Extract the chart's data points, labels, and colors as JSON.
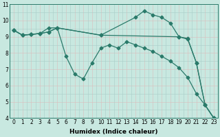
{
  "series": [
    {
      "x": [
        0,
        1,
        2,
        3,
        4,
        5,
        10,
        19,
        20,
        21,
        22,
        23
      ],
      "y": [
        9.4,
        9.1,
        9.15,
        9.2,
        9.3,
        9.55,
        9.1,
        9.0,
        8.9,
        7.4,
        4.8,
        4.0
      ]
    },
    {
      "x": [
        0,
        1,
        2,
        3,
        4,
        5,
        6,
        7,
        8,
        9,
        10,
        11,
        12,
        13,
        14,
        15,
        16,
        17,
        18,
        19,
        20,
        21,
        22,
        23
      ],
      "y": [
        9.4,
        9.1,
        9.15,
        9.2,
        9.55,
        9.55,
        7.8,
        6.7,
        6.4,
        7.4,
        8.3,
        8.5,
        8.3,
        8.7,
        8.5,
        8.3,
        8.1,
        7.8,
        7.5,
        7.1,
        6.5,
        5.5,
        4.8,
        4.0
      ]
    },
    {
      "x": [
        0,
        1,
        2,
        3,
        4,
        5,
        10,
        14,
        15,
        16,
        17,
        18,
        19,
        20,
        21,
        22,
        23
      ],
      "y": [
        9.4,
        9.1,
        9.15,
        9.2,
        9.3,
        9.55,
        9.1,
        10.2,
        10.6,
        10.35,
        10.2,
        9.85,
        9.0,
        8.85,
        7.4,
        4.8,
        4.0
      ]
    }
  ],
  "line_color": "#2a7a6a",
  "bg_color": "#c8e8e0",
  "grid_color_teal": "#a8ccc8",
  "grid_color_pink": "#dbbcbc",
  "xlabel": "Humidex (Indice chaleur)",
  "xlim": [
    -0.5,
    23.5
  ],
  "ylim": [
    4,
    11
  ],
  "xticks": [
    0,
    1,
    2,
    3,
    4,
    5,
    6,
    7,
    8,
    9,
    10,
    11,
    12,
    13,
    14,
    15,
    16,
    17,
    18,
    19,
    20,
    21,
    22,
    23
  ],
  "yticks": [
    4,
    5,
    6,
    7,
    8,
    9,
    10,
    11
  ],
  "marker": "D",
  "markersize": 2.5,
  "linewidth": 0.9,
  "xlabel_fontsize": 6.5,
  "tick_fontsize": 5.5
}
